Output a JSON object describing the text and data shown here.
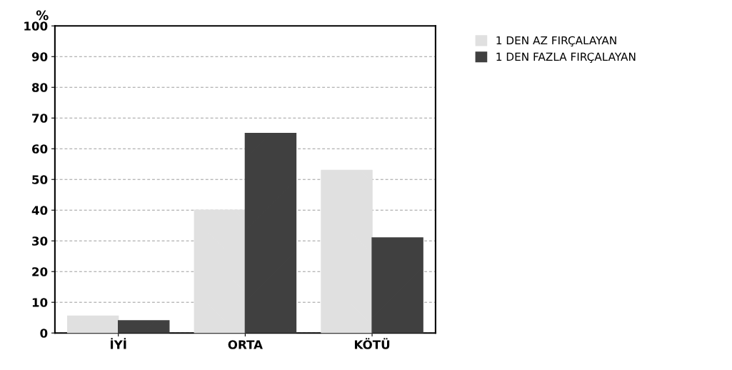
{
  "chart_data": {
    "type": "bar",
    "ylabel": "%",
    "categories": [
      "İYİ",
      "ORTA",
      "KÖTÜ"
    ],
    "series": [
      {
        "name": "1 DEN AZ FIRÇALAYAN",
        "color": "#e0e0e0",
        "values": [
          5.5,
          40,
          53
        ]
      },
      {
        "name": "1 DEN FAZLA FIRÇALAYAN",
        "color": "#404040",
        "values": [
          4,
          65,
          31
        ]
      }
    ],
    "ylim": [
      0,
      100
    ],
    "yticks": [
      0,
      10,
      20,
      30,
      40,
      50,
      60,
      70,
      80,
      90,
      100
    ],
    "grid": "y",
    "legend": "top right"
  }
}
